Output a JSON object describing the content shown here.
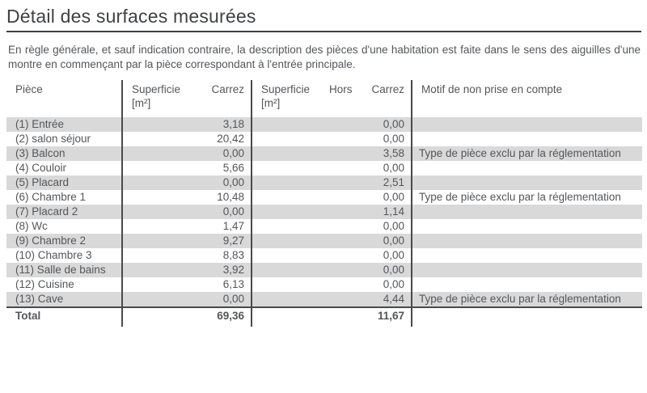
{
  "title": "Détail des surfaces mesurées",
  "intro": "En règle générale, et sauf indication contraire, la description des pièces d'une habitation est faite dans le sens des aiguilles d'une montre en commençant par la pièce correspondant à l'entrée principale.",
  "table": {
    "headers": {
      "piece": "Pièce",
      "carrez_word1": "Superficie",
      "carrez_word2": "Carrez",
      "carrez_unit": "[m²]",
      "hors_word1": "Superficie",
      "hors_word2": "Hors",
      "hors_word3": "Carrez",
      "hors_unit": "[m²]",
      "motif": "Motif de non prise en compte"
    },
    "rows": [
      {
        "piece": "(1) Entrée",
        "carrez": "3,18",
        "hors": "0,00",
        "motif": ""
      },
      {
        "piece": "(2) salon séjour",
        "carrez": "20,42",
        "hors": "0,00",
        "motif": ""
      },
      {
        "piece": "(3) Balcon",
        "carrez": "0,00",
        "hors": "3,58",
        "motif": "Type de pièce exclu par la réglementation"
      },
      {
        "piece": "(4) Couloir",
        "carrez": "5,66",
        "hors": "0,00",
        "motif": ""
      },
      {
        "piece": "(5) Placard",
        "carrez": "0,00",
        "hors": "2,51",
        "motif": ""
      },
      {
        "piece": "(6) Chambre 1",
        "carrez": "10,48",
        "hors": "0,00",
        "motif": "Type de pièce exclu par la réglementation"
      },
      {
        "piece": "(7) Placard 2",
        "carrez": "0,00",
        "hors": "1,14",
        "motif": ""
      },
      {
        "piece": "(8) Wc",
        "carrez": "1,47",
        "hors": "0,00",
        "motif": ""
      },
      {
        "piece": "(9) Chambre 2",
        "carrez": "9,27",
        "hors": "0,00",
        "motif": ""
      },
      {
        "piece": "(10) Chambre 3",
        "carrez": "8,83",
        "hors": "0,00",
        "motif": ""
      },
      {
        "piece": "(11) Salle de bains",
        "carrez": "3,92",
        "hors": "0,00",
        "motif": ""
      },
      {
        "piece": "(12) Cuisine",
        "carrez": "6,13",
        "hors": "0,00",
        "motif": ""
      },
      {
        "piece": "(13) Cave",
        "carrez": "0,00",
        "hors": "4,44",
        "motif": "Type de pièce exclu par la réglementation"
      }
    ],
    "total": {
      "label": "Total",
      "carrez": "69,36",
      "hors": "11,67"
    }
  },
  "colors": {
    "stripe": "#d9d9d9",
    "rule": "#3f4143",
    "grid_line": "#4a4a4a",
    "text": "#54565a"
  }
}
